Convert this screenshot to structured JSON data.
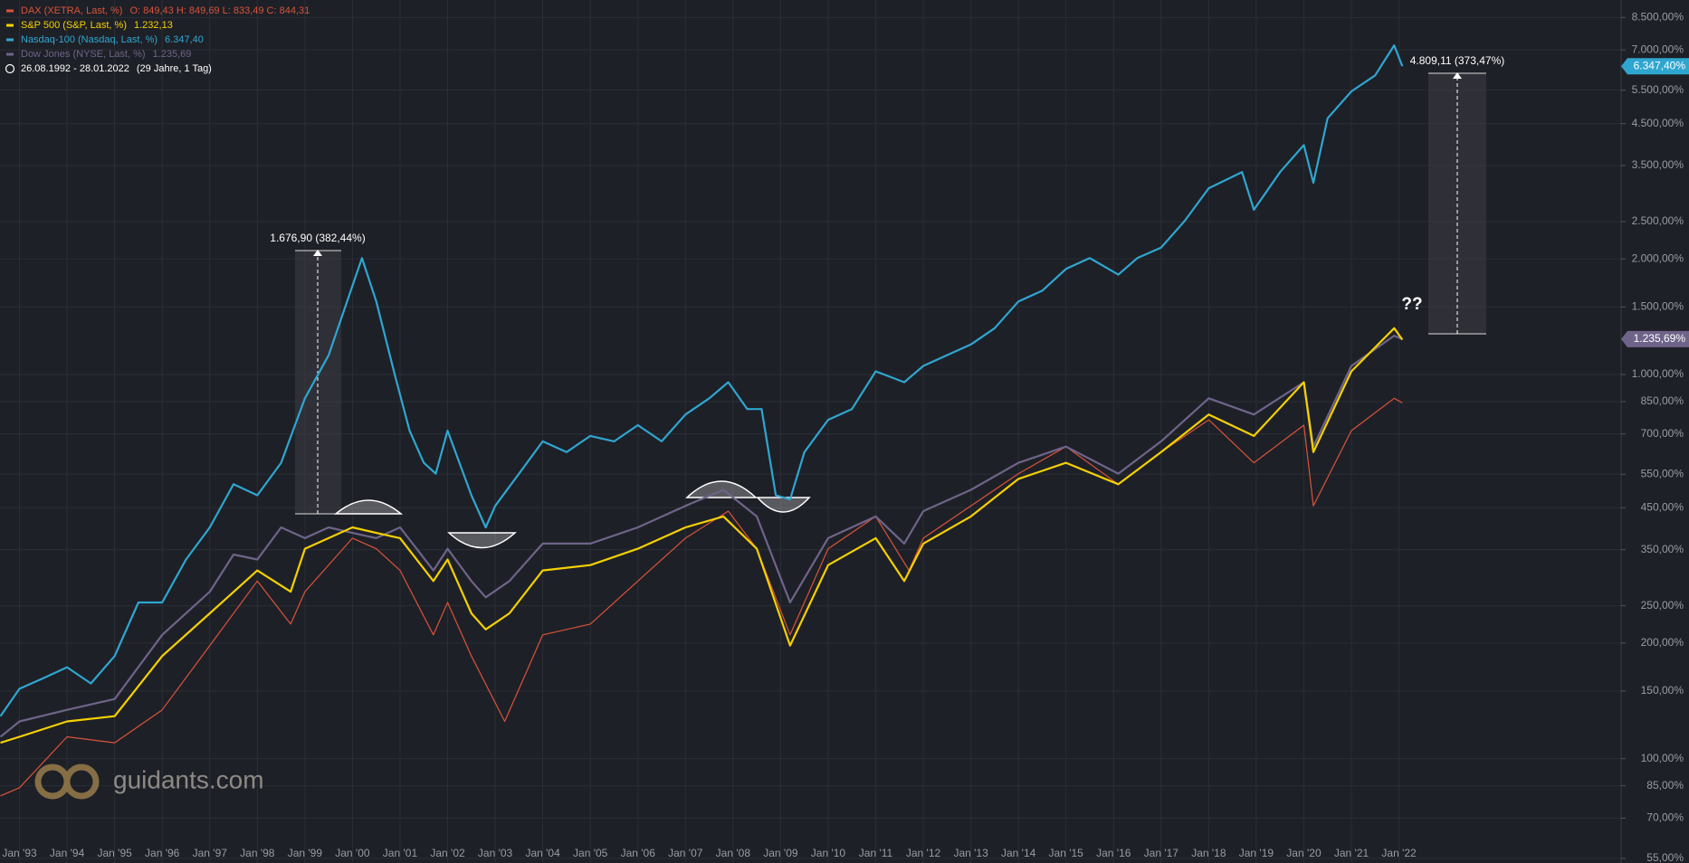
{
  "chart_data": {
    "type": "line",
    "log_scale": true,
    "grid": true,
    "period": "26.08.1992 - 28.01.2022",
    "period_note": "(29 Jahre, 1 Tag)",
    "watermark": "guidants.com",
    "xlim": [
      1992.59,
      2026.67
    ],
    "xticks": [
      {
        "value": 1993,
        "label": "Jan '93"
      },
      {
        "value": 1994,
        "label": "Jan '94"
      },
      {
        "value": 1995,
        "label": "Jan '95"
      },
      {
        "value": 1996,
        "label": "Jan '96"
      },
      {
        "value": 1997,
        "label": "Jan '97"
      },
      {
        "value": 1998,
        "label": "Jan '98"
      },
      {
        "value": 1999,
        "label": "Jan '99"
      },
      {
        "value": 2000,
        "label": "Jan '00"
      },
      {
        "value": 2001,
        "label": "Jan '01"
      },
      {
        "value": 2002,
        "label": "Jan '02"
      },
      {
        "value": 2003,
        "label": "Jan '03"
      },
      {
        "value": 2004,
        "label": "Jan '04"
      },
      {
        "value": 2005,
        "label": "Jan '05"
      },
      {
        "value": 2006,
        "label": "Jan '06"
      },
      {
        "value": 2007,
        "label": "Jan '07"
      },
      {
        "value": 2008,
        "label": "Jan '08"
      },
      {
        "value": 2009,
        "label": "Jan '09"
      },
      {
        "value": 2010,
        "label": "Jan '10"
      },
      {
        "value": 2011,
        "label": "Jan '11"
      },
      {
        "value": 2012,
        "label": "Jan '12"
      },
      {
        "value": 2013,
        "label": "Jan '13"
      },
      {
        "value": 2014,
        "label": "Jan '14"
      },
      {
        "value": 2015,
        "label": "Jan '15"
      },
      {
        "value": 2016,
        "label": "Jan '16"
      },
      {
        "value": 2017,
        "label": "Jan '17"
      },
      {
        "value": 2018,
        "label": "Jan '18"
      },
      {
        "value": 2019,
        "label": "Jan '19"
      },
      {
        "value": 2020,
        "label": "Jan '20"
      },
      {
        "value": 2021,
        "label": "Jan '21"
      },
      {
        "value": 2022,
        "label": "Jan '22"
      }
    ],
    "ylim": [
      53.5,
      9440
    ],
    "yticks": [
      {
        "value": 55,
        "label": "55,00%"
      },
      {
        "value": 70,
        "label": "70,00%"
      },
      {
        "value": 85,
        "label": "85,00%"
      },
      {
        "value": 100,
        "label": "100,00%"
      },
      {
        "value": 150,
        "label": "150,00%"
      },
      {
        "value": 200,
        "label": "200,00%"
      },
      {
        "value": 250,
        "label": "250,00%"
      },
      {
        "value": 350,
        "label": "350,00%"
      },
      {
        "value": 450,
        "label": "450,00%"
      },
      {
        "value": 550,
        "label": "550,00%"
      },
      {
        "value": 700,
        "label": "700,00%"
      },
      {
        "value": 850,
        "label": "850,00%"
      },
      {
        "value": 1000,
        "label": "1.000,00%"
      },
      {
        "value": 1500,
        "label": "1.500,00%"
      },
      {
        "value": 2000,
        "label": "2.000,00%"
      },
      {
        "value": 2500,
        "label": "2.500,00%"
      },
      {
        "value": 3500,
        "label": "3.500,00%"
      },
      {
        "value": 4500,
        "label": "4.500,00%"
      },
      {
        "value": 5500,
        "label": "5.500,00%"
      },
      {
        "value": 7000,
        "label": "7.000,00%"
      },
      {
        "value": 8500,
        "label": "8.500,00%"
      }
    ],
    "annotations": [
      "1.676,90 (382,44%)",
      "4.809,11 (373,47%)",
      "??"
    ],
    "series": [
      {
        "name": "DAX (XETRA, Last, %)",
        "color": "#d9533a",
        "ohlc": "O: 849,43  H: 849,69  L: 833,49  C: 844,31",
        "x": [
          1992.6,
          1993,
          1994,
          1995,
          1996,
          1997,
          1998,
          1998.7,
          1999,
          2000,
          2000.5,
          2001,
          2001.7,
          2002,
          2002.5,
          2003.2,
          2004,
          2005,
          2006,
          2007,
          2007.9,
          2008.5,
          2009.2,
          2010,
          2011,
          2011.7,
          2012,
          2013,
          2014,
          2015,
          2016.1,
          2017,
          2018,
          2018.95,
          2020,
          2020.2,
          2021,
          2021.9,
          2022.07
        ],
        "values": [
          80,
          84,
          114,
          110,
          134,
          197,
          290,
          224,
          272,
          375,
          352,
          309,
          210,
          255,
          185,
          125,
          210,
          224,
          290,
          375,
          441,
          352,
          210,
          352,
          427,
          309,
          375,
          455,
          552,
          649,
          518,
          628,
          762,
          589,
          738,
          455,
          714,
          867,
          844
        ]
      },
      {
        "name": "S&P 500 (S&P, Last, %)",
        "color": "#f5d000",
        "legend_value": "1.232,13",
        "x": [
          1992.6,
          1993,
          1994,
          1995,
          1996,
          1997,
          1998,
          1998.7,
          1999,
          2000,
          2000.5,
          2001,
          2001.7,
          2002,
          2002.5,
          2002.8,
          2003.3,
          2004,
          2005,
          2006,
          2007,
          2007.8,
          2008.5,
          2009.2,
          2010,
          2011,
          2011.6,
          2012,
          2013,
          2014,
          2015,
          2016.1,
          2017,
          2018,
          2018.95,
          2020,
          2020.2,
          2021,
          2021.9,
          2022.07
        ],
        "values": [
          110,
          114,
          125,
          129,
          185,
          239,
          309,
          272,
          352,
          400,
          387,
          375,
          290,
          330,
          239,
          217,
          239,
          309,
          319,
          352,
          400,
          427,
          352,
          197,
          319,
          375,
          290,
          363,
          427,
          535,
          589,
          518,
          628,
          787,
          692,
          955,
          628,
          1019,
          1320,
          1232
        ]
      },
      {
        "name": "Nasdaq-100 (Nasdaq, Last, %)",
        "color": "#2fa6d0",
        "legend_value": "6.347,40",
        "axis_tag": "6.347,40%",
        "x": [
          1992.6,
          1993,
          1993.5,
          1994,
          1994.5,
          1995,
          1995.5,
          1996,
          1996.5,
          1997,
          1997.5,
          1998,
          1998.5,
          1999,
          1999.5,
          2000.2,
          2000.5,
          2000.9,
          2001.2,
          2001.5,
          2001.75,
          2002,
          2002.5,
          2002.8,
          2003,
          2003.5,
          2004,
          2004.5,
          2005,
          2005.5,
          2006,
          2006.5,
          2007,
          2007.5,
          2007.9,
          2008.3,
          2008.6,
          2008.9,
          2009.2,
          2009.5,
          2010,
          2010.5,
          2011,
          2011.6,
          2012,
          2012.5,
          2013,
          2013.5,
          2014,
          2014.5,
          2015,
          2015.5,
          2016.1,
          2016.5,
          2017,
          2017.5,
          2018,
          2018.7,
          2018.95,
          2019.5,
          2020,
          2020.2,
          2020.5,
          2021,
          2021.5,
          2021.9,
          2022.07
        ],
        "values": [
          129,
          152,
          162,
          173,
          157,
          185,
          255,
          255,
          330,
          400,
          518,
          485,
          589,
          867,
          1123,
          2010,
          1550,
          987,
          714,
          589,
          552,
          714,
          485,
          400,
          455,
          552,
          670,
          628,
          692,
          670,
          738,
          670,
          787,
          867,
          955,
          813,
          813,
          485,
          473,
          628,
          762,
          813,
          1019,
          955,
          1053,
          1123,
          1197,
          1320,
          1550,
          1652,
          1883,
          2010,
          1820,
          2010,
          2140,
          2515,
          3055,
          3365,
          2685,
          3365,
          3955,
          3155,
          4645,
          5460,
          6010,
          7195,
          6347
        ]
      },
      {
        "name": "Dow Jones (NYSE, Last, %)",
        "color": "#6e6489",
        "legend_value": "1.235,69",
        "axis_tag": "1.235,69%",
        "x": [
          1992.6,
          1993,
          1994,
          1995,
          1996,
          1997,
          1997.5,
          1998,
          1998.5,
          1999,
          1999.5,
          2000,
          2000.5,
          2001,
          2001.7,
          2002,
          2002.5,
          2002.8,
          2003.3,
          2004,
          2005,
          2006,
          2007,
          2007.8,
          2008.5,
          2009.2,
          2010,
          2011,
          2011.6,
          2012,
          2013,
          2014,
          2015,
          2016.1,
          2017,
          2018,
          2018.95,
          2020,
          2020.2,
          2021,
          2021.9,
          2022.07
        ],
        "values": [
          114,
          125,
          134,
          143,
          210,
          272,
          340,
          330,
          400,
          375,
          400,
          387,
          375,
          400,
          309,
          352,
          290,
          263,
          290,
          363,
          363,
          400,
          455,
          501,
          427,
          255,
          375,
          427,
          363,
          441,
          501,
          589,
          649,
          552,
          670,
          867,
          787,
          955,
          649,
          1053,
          1262,
          1236
        ]
      }
    ]
  }
}
